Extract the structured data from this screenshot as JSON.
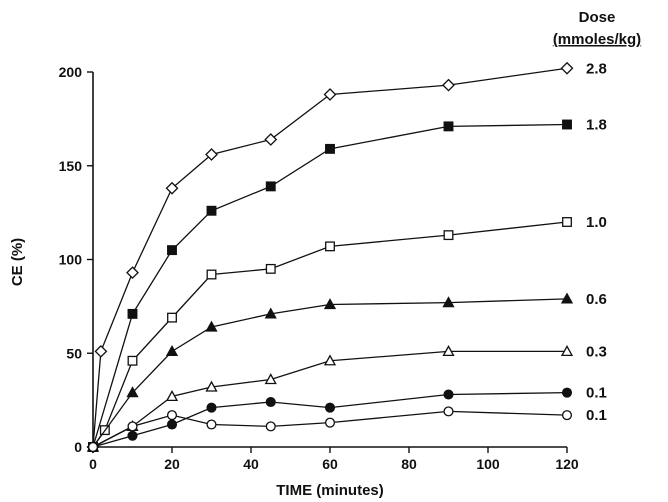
{
  "chart_data": {
    "type": "line",
    "xlabel": "TIME (minutes)",
    "ylabel": "CE (%)",
    "xlim": [
      0,
      120
    ],
    "ylim": [
      0,
      200
    ],
    "xticks": [
      "0",
      "20",
      "40",
      "60",
      "80",
      "100",
      "120"
    ],
    "yticks": [
      "0",
      "50",
      "100",
      "150",
      "200"
    ],
    "grid": false,
    "legend": {
      "title_line1": "Dose",
      "title_line2": "(mmoles/kg)",
      "placement": "right of series ends"
    },
    "series": [
      {
        "name": "2.8",
        "marker": "diamond-open",
        "x": [
          0,
          2,
          10,
          20,
          30,
          45,
          60,
          90,
          120
        ],
        "y": [
          0,
          51,
          93,
          138,
          156,
          164,
          188,
          193,
          202
        ]
      },
      {
        "name": "1.8",
        "marker": "square-filled",
        "x": [
          0,
          10,
          20,
          30,
          45,
          60,
          90,
          120
        ],
        "y": [
          0,
          71,
          105,
          126,
          139,
          159,
          171,
          172
        ]
      },
      {
        "name": "1.0",
        "marker": "square-open",
        "x": [
          0,
          3,
          10,
          20,
          30,
          45,
          60,
          90,
          120
        ],
        "y": [
          0,
          9,
          46,
          69,
          92,
          95,
          107,
          113,
          120
        ]
      },
      {
        "name": "0.6",
        "marker": "triangle-filled",
        "x": [
          0,
          10,
          20,
          30,
          45,
          60,
          90,
          120
        ],
        "y": [
          0,
          29,
          51,
          64,
          71,
          76,
          77,
          79
        ]
      },
      {
        "name": "0.3",
        "marker": "triangle-open",
        "x": [
          0,
          10,
          20,
          30,
          45,
          60,
          90,
          120
        ],
        "y": [
          0,
          11,
          27,
          32,
          36,
          46,
          51,
          51
        ]
      },
      {
        "name": "0.1",
        "marker": "circle-filled",
        "x": [
          0,
          10,
          20,
          30,
          45,
          60,
          90,
          120
        ],
        "y": [
          0,
          6,
          12,
          21,
          24,
          21,
          28,
          29
        ]
      },
      {
        "name": "0.1",
        "marker": "circle-open",
        "x": [
          0,
          10,
          20,
          30,
          45,
          60,
          90,
          120
        ],
        "y": [
          0,
          11,
          17,
          12,
          11,
          13,
          19,
          17
        ]
      }
    ]
  }
}
